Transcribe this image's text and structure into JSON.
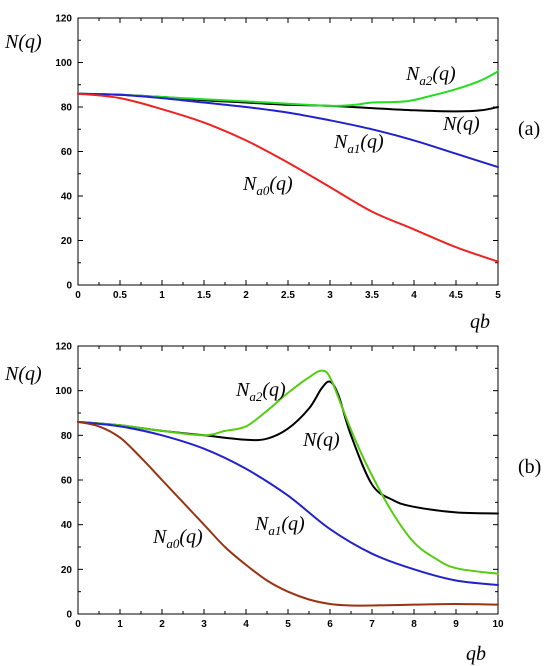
{
  "chart_data": [
    {
      "type": "line",
      "panel_label": "(a)",
      "ylabel": "N(q)",
      "xlabel": "qb",
      "xlim": [
        0,
        5
      ],
      "ylim": [
        0,
        120
      ],
      "xticks": [
        "0",
        "0.5",
        "1",
        "1.5",
        "2",
        "2.5",
        "3",
        "3.5",
        "4",
        "4.5",
        "5"
      ],
      "yticks": [
        "0",
        "20",
        "40",
        "60",
        "80",
        "100",
        "120"
      ],
      "series": [
        {
          "name": "N(q)",
          "label_main": "N",
          "label_sub": "",
          "color": "#000000",
          "x": [
            0,
            0.5,
            1,
            1.5,
            2,
            2.5,
            3,
            3.5,
            4,
            4.5,
            4.8,
            5
          ],
          "y": [
            86,
            85.5,
            84.5,
            83,
            82,
            81,
            80.5,
            79.5,
            78.5,
            78,
            78.5,
            80
          ]
        },
        {
          "name": "Na2(q)",
          "label_main": "N",
          "label_sub": "a2",
          "color": "#22dd22",
          "x": [
            0,
            0.5,
            1,
            1.5,
            2,
            2.5,
            3,
            3.3,
            3.5,
            3.9,
            4.2,
            4.5,
            4.8,
            5
          ],
          "y": [
            86,
            85.5,
            84.5,
            83.5,
            82.5,
            81.5,
            80.5,
            81,
            82,
            82.5,
            85,
            88,
            92,
            96
          ]
        },
        {
          "name": "Na1(q)",
          "label_main": "N",
          "label_sub": "a1",
          "color": "#2222cc",
          "x": [
            0,
            0.5,
            1,
            1.5,
            2,
            2.5,
            3,
            3.5,
            4,
            4.5,
            5
          ],
          "y": [
            86,
            85.5,
            84,
            82,
            80,
            77.5,
            74,
            70,
            65,
            59,
            53
          ]
        },
        {
          "name": "Na0(q)",
          "label_main": "N",
          "label_sub": "a0",
          "color": "#ee2222",
          "x": [
            0,
            0.5,
            1,
            1.5,
            2,
            2.5,
            3,
            3.5,
            4,
            4.5,
            5
          ],
          "y": [
            86,
            84,
            79,
            73,
            65,
            55,
            44,
            33,
            25,
            17,
            10.5
          ]
        }
      ]
    },
    {
      "type": "line",
      "panel_label": "(b)",
      "ylabel": "N(q)",
      "xlabel": "qb",
      "xlim": [
        0,
        10
      ],
      "ylim": [
        0,
        120
      ],
      "xticks": [
        "0",
        "1",
        "2",
        "3",
        "4",
        "5",
        "6",
        "7",
        "8",
        "9",
        "10"
      ],
      "yticks": [
        "0",
        "20",
        "40",
        "60",
        "80",
        "100",
        "120"
      ],
      "series": [
        {
          "name": "N(q)",
          "label_main": "N",
          "label_sub": "",
          "color": "#000000",
          "x": [
            0,
            1,
            2,
            3,
            4,
            4.5,
            5,
            5.5,
            5.8,
            6,
            6.2,
            6.5,
            7,
            7.5,
            8,
            9,
            10
          ],
          "y": [
            86,
            84.5,
            82,
            80,
            78,
            78.5,
            83,
            92,
            101,
            104,
            98,
            80,
            58,
            51,
            48,
            45.5,
            45
          ]
        },
        {
          "name": "Na2(q)",
          "label_main": "N",
          "label_sub": "a2",
          "color": "#55cc11",
          "x": [
            0,
            1,
            2,
            3,
            3.5,
            4,
            4.5,
            5,
            5.5,
            5.8,
            6,
            6.3,
            6.6,
            7,
            7.5,
            8,
            8.5,
            9,
            10
          ],
          "y": [
            86,
            84.5,
            82,
            80,
            82,
            84,
            91,
            99,
            106,
            109,
            106,
            92,
            78,
            62,
            45,
            32,
            25,
            20.5,
            18
          ]
        },
        {
          "name": "Na1(q)",
          "label_main": "N",
          "label_sub": "a1",
          "color": "#2222cc",
          "x": [
            0,
            1,
            2,
            3,
            4,
            5,
            6,
            7,
            8,
            9,
            10
          ],
          "y": [
            86,
            84,
            80,
            74,
            65,
            53,
            38,
            27,
            20,
            15,
            13
          ]
        },
        {
          "name": "Na0(q)",
          "label_main": "N",
          "label_sub": "a0",
          "color": "#993311",
          "x": [
            0,
            0.5,
            1,
            1.5,
            2,
            2.5,
            3,
            3.5,
            4,
            4.5,
            5,
            5.5,
            6,
            6.5,
            7,
            8,
            9,
            10
          ],
          "y": [
            86,
            84,
            79,
            70,
            60,
            50,
            40,
            30,
            22,
            15,
            10,
            6.5,
            4.5,
            3.8,
            3.8,
            4.2,
            4.5,
            4.2
          ]
        }
      ]
    }
  ]
}
